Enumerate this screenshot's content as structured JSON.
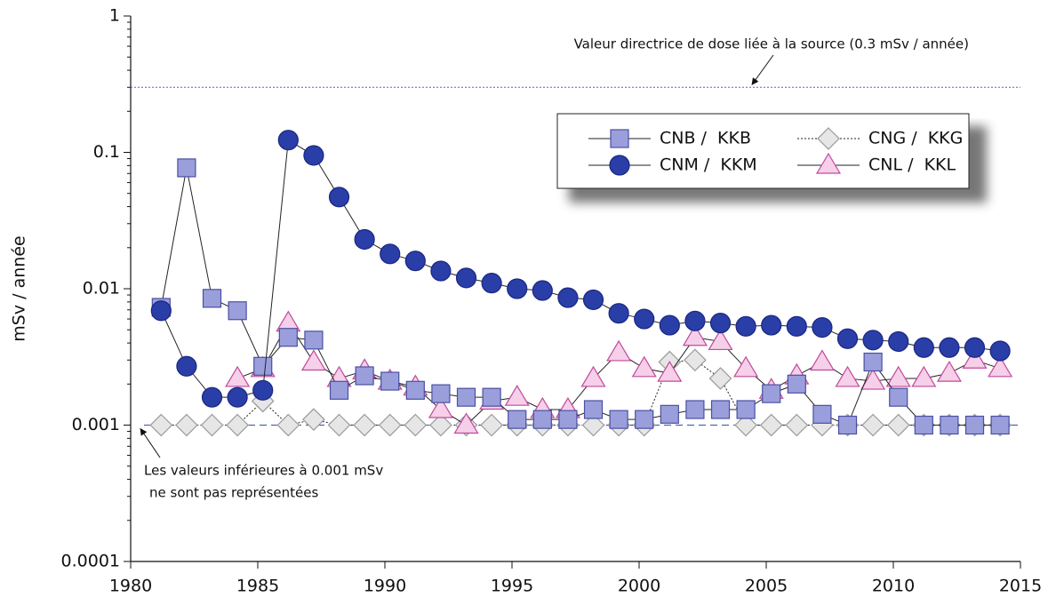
{
  "chart_data": {
    "type": "line",
    "y_label": "mSv / année",
    "log_scale": true,
    "xlim": [
      1980,
      2015
    ],
    "xticks": [
      1980,
      1985,
      1990,
      1995,
      2000,
      2005,
      2010,
      2015
    ],
    "ylim": [
      0.0001,
      1
    ],
    "yticks": [
      0.0001,
      0.001,
      0.01,
      0.1,
      1
    ],
    "reference_lines": [
      {
        "value": 0.3,
        "label": "Valeur directrice de dose liée à la source (0.3 mSv / année)"
      },
      {
        "value": 0.001,
        "label": [
          "Les valeurs inférieures à 0.001 mSv",
          "ne sont pas représentées"
        ]
      }
    ],
    "legend_position": "upper right",
    "x": [
      1981.2,
      1982.2,
      1983.2,
      1984.2,
      1985.2,
      1986.2,
      1987.2,
      1988.2,
      1989.2,
      1990.2,
      1991.2,
      1992.2,
      1993.2,
      1994.2,
      1995.2,
      1996.2,
      1997.2,
      1998.2,
      1999.2,
      2000.2,
      2001.2,
      2002.2,
      2003.2,
      2004.2,
      2005.2,
      2006.2,
      2007.2,
      2008.2,
      2009.2,
      2010.2,
      2011.2,
      2012.2,
      2013.2,
      2014.2
    ],
    "series": [
      {
        "name": "CNB /  KKB",
        "marker": "square",
        "color": "#9a9fdc",
        "line_style": "solid",
        "values": [
          0.0073,
          0.077,
          0.0085,
          0.0069,
          0.0027,
          0.0044,
          0.0042,
          0.0018,
          0.0023,
          0.0021,
          0.0018,
          0.0017,
          0.0016,
          0.0016,
          0.0011,
          0.0011,
          0.0011,
          0.0013,
          0.0011,
          0.0011,
          0.0012,
          0.0013,
          0.0013,
          0.0013,
          0.0017,
          0.002,
          0.0012,
          0.001,
          0.0029,
          0.0016,
          0.001,
          0.001,
          0.001,
          0.001
        ]
      },
      {
        "name": "CNM /  KKM",
        "marker": "circle",
        "color": "#2a3ea8",
        "line_style": "solid",
        "values": [
          0.0069,
          0.0027,
          0.0016,
          0.0016,
          0.0018,
          0.123,
          0.095,
          0.047,
          0.023,
          0.018,
          0.016,
          0.0135,
          0.012,
          0.011,
          0.01,
          0.0097,
          0.0086,
          0.0083,
          0.0066,
          0.006,
          0.0054,
          0.0058,
          0.0056,
          0.0053,
          0.0054,
          0.0053,
          0.0052,
          0.0043,
          0.0042,
          0.0041,
          0.0037,
          0.0037,
          0.0037,
          0.0035
        ]
      },
      {
        "name": "CNG /  KKG",
        "marker": "diamond",
        "color": "#e6e6e6",
        "line_style": "dotted",
        "values": [
          0.001,
          0.001,
          0.001,
          0.001,
          0.0015,
          0.001,
          0.0011,
          0.001,
          0.001,
          0.001,
          0.001,
          0.001,
          0.001,
          0.001,
          0.001,
          0.001,
          0.001,
          0.001,
          0.001,
          0.001,
          0.0029,
          0.003,
          0.0022,
          0.001,
          0.001,
          0.001,
          0.001,
          0.001,
          0.001,
          0.001,
          0.001,
          0.001,
          0.001,
          0.001
        ]
      },
      {
        "name": "CNL /  KKL",
        "marker": "triangle",
        "color": "#f6cfe9",
        "line_style": "solid",
        "values": [
          null,
          null,
          null,
          0.0022,
          0.0026,
          0.0056,
          0.0029,
          0.0022,
          0.0025,
          0.0021,
          0.0019,
          0.0013,
          0.001,
          0.0015,
          0.0016,
          0.0013,
          0.0013,
          0.0022,
          0.0034,
          0.0026,
          0.0024,
          0.0044,
          0.0041,
          0.0026,
          0.0018,
          0.0023,
          0.0029,
          0.0022,
          0.0021,
          0.0022,
          0.0022,
          0.0024,
          0.003,
          0.0026
        ]
      }
    ]
  }
}
